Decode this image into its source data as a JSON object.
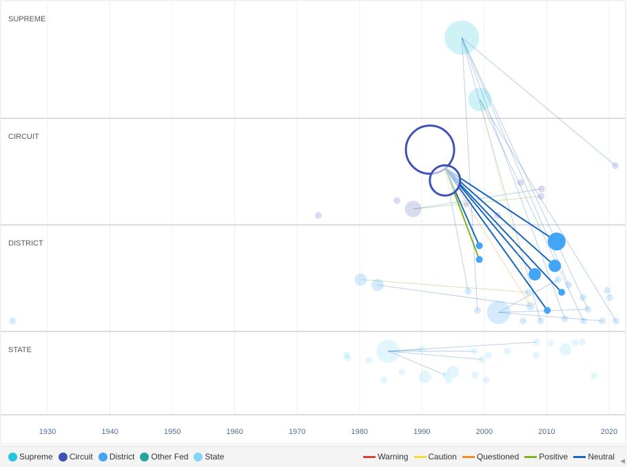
{
  "chart_data": {
    "type": "scatter",
    "title": "",
    "x_axis": {
      "range": [
        1920,
        2024
      ],
      "ticks": [
        "1930",
        "1940",
        "1950",
        "1960",
        "1970",
        "1980",
        "1990",
        "2000",
        "2010",
        "2020"
      ]
    },
    "lanes": [
      {
        "key": "supreme",
        "label": "SUPREME"
      },
      {
        "key": "circuit",
        "label": "CIRCUIT"
      },
      {
        "key": "district",
        "label": "DISTRICT"
      },
      {
        "key": "state",
        "label": "STATE"
      }
    ],
    "court_legend": [
      {
        "key": "supreme",
        "label": "Supreme",
        "color": "#26c6da"
      },
      {
        "key": "circuit",
        "label": "Circuit",
        "color": "#3f51b5"
      },
      {
        "key": "district",
        "label": "District",
        "color": "#42a5f5"
      },
      {
        "key": "otherfed",
        "label": "Other Fed",
        "color": "#26a69a"
      },
      {
        "key": "state",
        "label": "State",
        "color": "#81d4fa"
      }
    ],
    "treatment_legend": [
      {
        "key": "warning",
        "label": "Warning",
        "color": "#e53935"
      },
      {
        "key": "caution",
        "label": "Caution",
        "color": "#fdd835"
      },
      {
        "key": "questioned",
        "label": "Questioned",
        "color": "#ef8c1a"
      },
      {
        "key": "positive",
        "label": "Positive",
        "color": "#7cb518"
      },
      {
        "key": "neutral",
        "label": "Neutral",
        "color": "#1565c0"
      }
    ],
    "nodes": [
      {
        "id": "s0",
        "court": "supreme",
        "year": 1996.4,
        "level": 0.31,
        "weight": 5,
        "style": "faded"
      },
      {
        "id": "s1",
        "court": "supreme",
        "year": 1999.3,
        "level": 0.84,
        "weight": 3.4,
        "style": "faded"
      },
      {
        "id": "c0",
        "court": "circuit",
        "year": 1991.3,
        "level": 0.29,
        "weight": 7,
        "style": "hollow"
      },
      {
        "id": "c1",
        "court": "circuit",
        "year": 1993.7,
        "level": 0.58,
        "weight": 4.4,
        "style": "hollow"
      },
      {
        "id": "c2",
        "court": "circuit",
        "year": 1988.6,
        "level": 0.85,
        "weight": 2.4,
        "style": "faded"
      },
      {
        "id": "c3",
        "court": "circuit",
        "year": 1973.4,
        "level": 0.91,
        "weight": 1,
        "style": "faded"
      },
      {
        "id": "c4",
        "court": "circuit",
        "year": 1986.0,
        "level": 0.77,
        "weight": 1,
        "style": "faded"
      },
      {
        "id": "c5",
        "court": "circuit",
        "year": 2005.8,
        "level": 0.6,
        "weight": 1,
        "style": "faded"
      },
      {
        "id": "c6",
        "court": "circuit",
        "year": 2009.2,
        "level": 0.66,
        "weight": 1,
        "style": "faded"
      },
      {
        "id": "c7",
        "court": "circuit",
        "year": 2009.1,
        "level": 0.73,
        "weight": 1,
        "style": "faded"
      },
      {
        "id": "c8",
        "court": "circuit",
        "year": 2002.1,
        "level": 0.91,
        "weight": 1,
        "style": "faded"
      },
      {
        "id": "c9",
        "court": "circuit",
        "year": 2021.0,
        "level": 0.44,
        "weight": 1,
        "style": "faded"
      },
      {
        "id": "c10",
        "court": "circuit",
        "year": 1997.1,
        "level": 0.81,
        "weight": 0.8,
        "style": "faded"
      },
      {
        "id": "d0",
        "court": "district",
        "year": 2011.6,
        "level": 0.15,
        "weight": 2.6,
        "style": "focus"
      },
      {
        "id": "d1",
        "court": "district",
        "year": 2011.3,
        "level": 0.38,
        "weight": 1.8,
        "style": "focus"
      },
      {
        "id": "d2",
        "court": "district",
        "year": 2008.1,
        "level": 0.46,
        "weight": 1.8,
        "style": "focus"
      },
      {
        "id": "d3",
        "court": "district",
        "year": 1999.2,
        "level": 0.19,
        "weight": 1,
        "style": "focus"
      },
      {
        "id": "d4",
        "court": "district",
        "year": 1999.2,
        "level": 0.32,
        "weight": 1,
        "style": "focus"
      },
      {
        "id": "d5",
        "court": "district",
        "year": 2012.4,
        "level": 0.63,
        "weight": 1,
        "style": "focus"
      },
      {
        "id": "d6",
        "court": "district",
        "year": 2010.1,
        "level": 0.8,
        "weight": 1,
        "style": "focus"
      },
      {
        "id": "d7",
        "court": "district",
        "year": 1924.4,
        "level": 0.9,
        "weight": 1,
        "style": "faded"
      },
      {
        "id": "d8",
        "court": "district",
        "year": 1980.2,
        "level": 0.51,
        "weight": 1.8,
        "style": "faded"
      },
      {
        "id": "d9",
        "court": "district",
        "year": 1982.9,
        "level": 0.56,
        "weight": 1.8,
        "style": "faded"
      },
      {
        "id": "d10",
        "court": "district",
        "year": 1997.4,
        "level": 0.62,
        "weight": 1,
        "style": "faded"
      },
      {
        "id": "d11",
        "court": "district",
        "year": 2002.3,
        "level": 0.82,
        "weight": 3.4,
        "style": "faded"
      },
      {
        "id": "d12",
        "court": "district",
        "year": 1998.9,
        "level": 0.8,
        "weight": 1,
        "style": "faded"
      },
      {
        "id": "d13",
        "court": "district",
        "year": 2006.2,
        "level": 0.9,
        "weight": 1,
        "style": "faded"
      },
      {
        "id": "d14",
        "court": "district",
        "year": 2007.4,
        "level": 0.76,
        "weight": 1.2,
        "style": "faded"
      },
      {
        "id": "d15",
        "court": "district",
        "year": 2011.8,
        "level": 0.51,
        "weight": 1,
        "style": "faded"
      },
      {
        "id": "d16",
        "court": "district",
        "year": 2013.5,
        "level": 0.56,
        "weight": 1,
        "style": "faded"
      },
      {
        "id": "d17",
        "court": "district",
        "year": 2019.7,
        "level": 0.61,
        "weight": 1,
        "style": "faded"
      },
      {
        "id": "d18",
        "court": "district",
        "year": 2020.1,
        "level": 0.68,
        "weight": 1,
        "style": "faded"
      },
      {
        "id": "d19",
        "court": "district",
        "year": 2018.9,
        "level": 0.9,
        "weight": 1,
        "style": "faded"
      },
      {
        "id": "d20",
        "court": "district",
        "year": 2021.1,
        "level": 0.9,
        "weight": 1,
        "style": "faded"
      },
      {
        "id": "d21",
        "court": "district",
        "year": 2015.8,
        "level": 0.68,
        "weight": 1,
        "style": "faded"
      },
      {
        "id": "d22",
        "court": "district",
        "year": 2016.6,
        "level": 0.79,
        "weight": 1,
        "style": "faded"
      },
      {
        "id": "d23",
        "court": "district",
        "year": 2015.9,
        "level": 0.9,
        "weight": 1,
        "style": "faded"
      },
      {
        "id": "d24",
        "court": "district",
        "year": 2012.9,
        "level": 0.88,
        "weight": 1,
        "style": "faded"
      },
      {
        "id": "d25",
        "court": "district",
        "year": 2009.0,
        "level": 0.9,
        "weight": 1,
        "style": "faded"
      },
      {
        "id": "d26",
        "court": "district",
        "year": 2007.0,
        "level": 0.63,
        "weight": 1,
        "style": "faded"
      },
      {
        "id": "t0",
        "court": "state",
        "year": 1984.6,
        "level": 0.23,
        "weight": 3.4,
        "style": "faded"
      },
      {
        "id": "t1",
        "court": "state",
        "year": 2013.0,
        "level": 0.21,
        "weight": 1.8,
        "style": "faded"
      },
      {
        "id": "t2",
        "court": "state",
        "year": 1977.9,
        "level": 0.28,
        "weight": 1,
        "style": "faded"
      },
      {
        "id": "t3",
        "court": "state",
        "year": 1978.1,
        "level": 0.31,
        "weight": 1,
        "style": "faded"
      },
      {
        "id": "t4",
        "court": "state",
        "year": 1981.5,
        "level": 0.34,
        "weight": 1,
        "style": "faded"
      },
      {
        "id": "t5",
        "court": "state",
        "year": 1983.9,
        "level": 0.58,
        "weight": 1,
        "style": "faded"
      },
      {
        "id": "t6",
        "court": "state",
        "year": 1986.8,
        "level": 0.48,
        "weight": 1,
        "style": "faded"
      },
      {
        "id": "t7",
        "court": "state",
        "year": 1990.5,
        "level": 0.54,
        "weight": 1.8,
        "style": "faded"
      },
      {
        "id": "t8",
        "court": "state",
        "year": 1990.0,
        "level": 0.21,
        "weight": 1,
        "style": "faded"
      },
      {
        "id": "t9",
        "court": "state",
        "year": 1993.8,
        "level": 0.52,
        "weight": 1,
        "style": "faded"
      },
      {
        "id": "t10",
        "court": "state",
        "year": 1995.0,
        "level": 0.48,
        "weight": 1.8,
        "style": "faded"
      },
      {
        "id": "t11",
        "court": "state",
        "year": 1994.3,
        "level": 0.58,
        "weight": 1,
        "style": "faded"
      },
      {
        "id": "t12",
        "court": "state",
        "year": 1998.5,
        "level": 0.52,
        "weight": 1,
        "style": "faded"
      },
      {
        "id": "t13",
        "court": "state",
        "year": 2000.3,
        "level": 0.58,
        "weight": 1,
        "style": "faded"
      },
      {
        "id": "t14",
        "court": "state",
        "year": 2000.7,
        "level": 0.28,
        "weight": 1,
        "style": "faded"
      },
      {
        "id": "t15",
        "court": "state",
        "year": 2003.7,
        "level": 0.23,
        "weight": 1,
        "style": "faded"
      },
      {
        "id": "t16",
        "court": "state",
        "year": 1998.4,
        "level": 0.23,
        "weight": 1,
        "style": "faded"
      },
      {
        "id": "t17",
        "court": "state",
        "year": 1999.6,
        "level": 0.33,
        "weight": 1,
        "style": "faded"
      },
      {
        "id": "t18",
        "court": "state",
        "year": 2008.4,
        "level": 0.12,
        "weight": 1,
        "style": "faded"
      },
      {
        "id": "t19",
        "court": "state",
        "year": 2008.3,
        "level": 0.28,
        "weight": 1,
        "style": "faded"
      },
      {
        "id": "t20",
        "court": "state",
        "year": 2010.7,
        "level": 0.13,
        "weight": 1,
        "style": "faded"
      },
      {
        "id": "t21",
        "court": "state",
        "year": 2014.5,
        "level": 0.13,
        "weight": 1,
        "style": "faded"
      },
      {
        "id": "t22",
        "court": "state",
        "year": 2015.7,
        "level": 0.12,
        "weight": 1,
        "style": "faded"
      },
      {
        "id": "t23",
        "court": "state",
        "year": 2017.6,
        "level": 0.53,
        "weight": 1,
        "style": "faded"
      }
    ],
    "edges": [
      {
        "from": "c1",
        "to": "d0",
        "treatment": "neutral",
        "strong": true
      },
      {
        "from": "c1",
        "to": "d1",
        "treatment": "neutral",
        "strong": true
      },
      {
        "from": "c1",
        "to": "d2",
        "treatment": "neutral",
        "strong": true
      },
      {
        "from": "c1",
        "to": "d3",
        "treatment": "neutral",
        "strong": true
      },
      {
        "from": "c1",
        "to": "d4",
        "treatment": "positive",
        "strong": true
      },
      {
        "from": "c1",
        "to": "d5",
        "treatment": "neutral",
        "strong": true
      },
      {
        "from": "c1",
        "to": "d6",
        "treatment": "neutral",
        "strong": true
      },
      {
        "from": "c1",
        "to": "d14",
        "treatment": "questioned",
        "strong": false
      },
      {
        "from": "c1",
        "to": "d10",
        "treatment": "neutral",
        "strong": false
      },
      {
        "from": "s0",
        "to": "c9",
        "treatment": "neutral",
        "strong": false
      },
      {
        "from": "s0",
        "to": "d12",
        "treatment": "neutral",
        "strong": false
      },
      {
        "from": "s0",
        "to": "d24",
        "treatment": "neutral",
        "strong": false
      },
      {
        "from": "s0",
        "to": "d25",
        "treatment": "neutral",
        "strong": false
      },
      {
        "from": "s0",
        "to": "d22",
        "treatment": "neutral",
        "strong": false
      },
      {
        "from": "s0",
        "to": "d16",
        "treatment": "neutral",
        "strong": false
      },
      {
        "from": "s1",
        "to": "d14",
        "treatment": "caution",
        "strong": false
      },
      {
        "from": "s1",
        "to": "d23",
        "treatment": "neutral",
        "strong": false
      },
      {
        "from": "s1",
        "to": "d20",
        "treatment": "neutral",
        "strong": false
      },
      {
        "from": "c2",
        "to": "c6",
        "treatment": "neutral",
        "strong": false
      },
      {
        "from": "c2",
        "to": "c7",
        "treatment": "positive",
        "strong": false
      },
      {
        "from": "d8",
        "to": "d26",
        "treatment": "positive",
        "strong": false
      },
      {
        "from": "d9",
        "to": "d14",
        "treatment": "neutral",
        "strong": false
      },
      {
        "from": "d11",
        "to": "d15",
        "treatment": "neutral",
        "strong": false
      },
      {
        "from": "d11",
        "to": "d22",
        "treatment": "neutral",
        "strong": false
      },
      {
        "from": "d11",
        "to": "d19",
        "treatment": "neutral",
        "strong": false
      },
      {
        "from": "t0",
        "to": "t16",
        "treatment": "neutral",
        "strong": false
      },
      {
        "from": "t0",
        "to": "t17",
        "treatment": "neutral",
        "strong": false
      },
      {
        "from": "t0",
        "to": "t18",
        "treatment": "neutral",
        "strong": false
      },
      {
        "from": "t0",
        "to": "t8",
        "treatment": "neutral",
        "strong": false
      },
      {
        "from": "t0",
        "to": "t9",
        "treatment": "neutral",
        "strong": false
      }
    ]
  }
}
